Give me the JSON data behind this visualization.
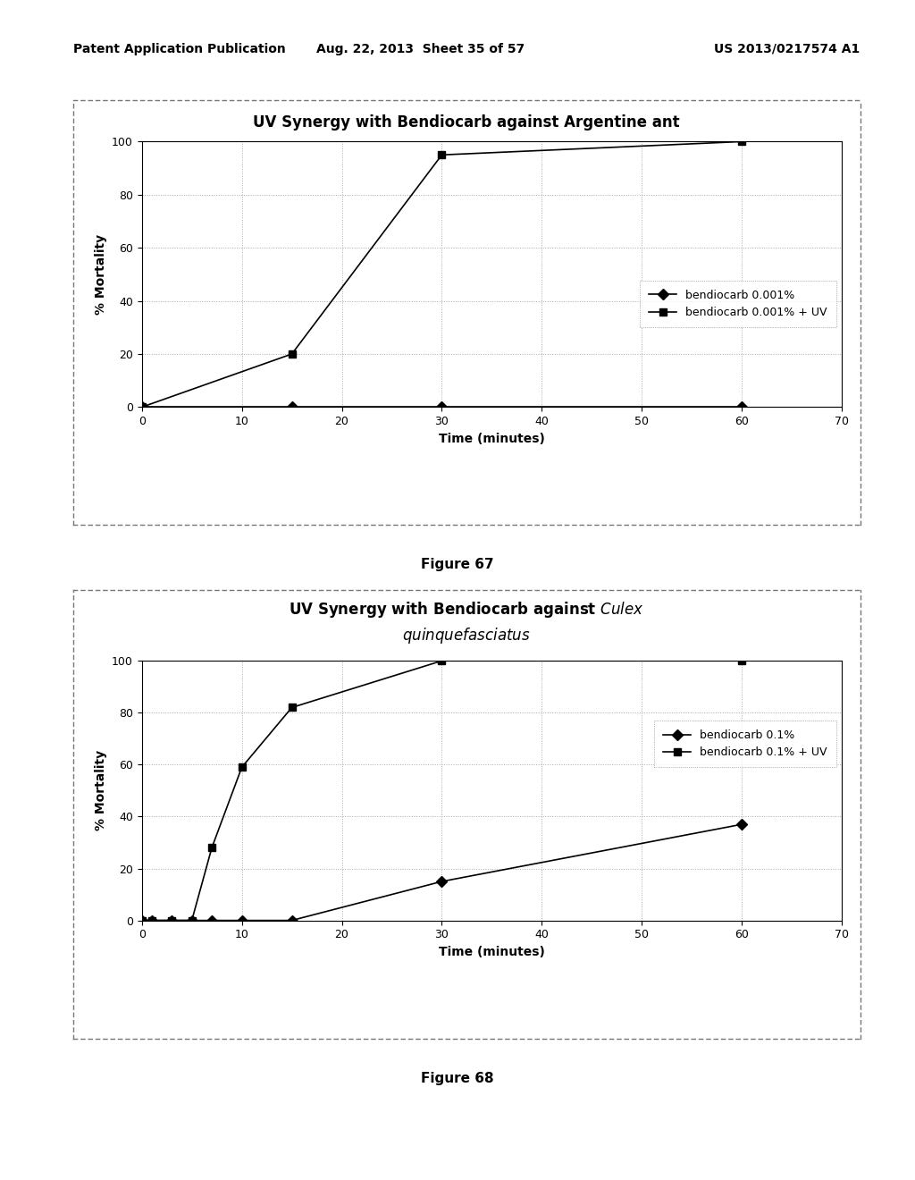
{
  "fig1": {
    "title": "UV Synergy with Bendiocarb against Argentine ant",
    "xlabel": "Time (minutes)",
    "ylabel": "% Mortality",
    "xlim": [
      0,
      70
    ],
    "ylim": [
      0,
      100
    ],
    "xticks": [
      0,
      10,
      20,
      30,
      40,
      50,
      60,
      70
    ],
    "yticks": [
      0,
      20,
      40,
      60,
      80,
      100
    ],
    "series1": {
      "label": "bendiocarb 0.001%",
      "x": [
        0,
        15,
        30,
        60
      ],
      "y": [
        0,
        0,
        0,
        0
      ],
      "marker": "D",
      "color": "#000000",
      "linestyle": "-"
    },
    "series2": {
      "label": "bendiocarb 0.001% + UV",
      "x": [
        0,
        15,
        30,
        60
      ],
      "y": [
        0,
        20,
        95,
        100
      ],
      "marker": "s",
      "color": "#000000",
      "linestyle": "-"
    },
    "figure_caption": "Figure 67"
  },
  "fig2": {
    "xlabel": "Time (minutes)",
    "ylabel": "% Mortality",
    "xlim": [
      0,
      70
    ],
    "ylim": [
      0,
      100
    ],
    "xticks": [
      0,
      10,
      20,
      30,
      40,
      50,
      60,
      70
    ],
    "yticks": [
      0,
      20,
      40,
      60,
      80,
      100
    ],
    "series1": {
      "label": "bendiocarb 0.1%",
      "x": [
        0,
        1,
        3,
        5,
        7,
        10,
        15,
        30,
        60
      ],
      "y": [
        0,
        0,
        0,
        0,
        0,
        0,
        0,
        15,
        37
      ],
      "marker": "D",
      "color": "#000000",
      "linestyle": "-"
    },
    "series2": {
      "label": "bendiocarb 0.1% + UV",
      "x": [
        0,
        1,
        3,
        5,
        7,
        10,
        15,
        30,
        60
      ],
      "y": [
        0,
        0,
        0,
        0,
        28,
        59,
        82,
        100,
        100
      ],
      "marker": "s",
      "color": "#000000",
      "linestyle": "-"
    },
    "figure_caption": "Figure 68"
  },
  "header_left": "Patent Application Publication",
  "header_mid": "Aug. 22, 2013  Sheet 35 of 57",
  "header_right": "US 2013/0217574 A1",
  "background_color": "#ffffff",
  "grid_color": "#aaaaaa",
  "grid_linestyle": ":",
  "box_facecolor": "#ffffff"
}
